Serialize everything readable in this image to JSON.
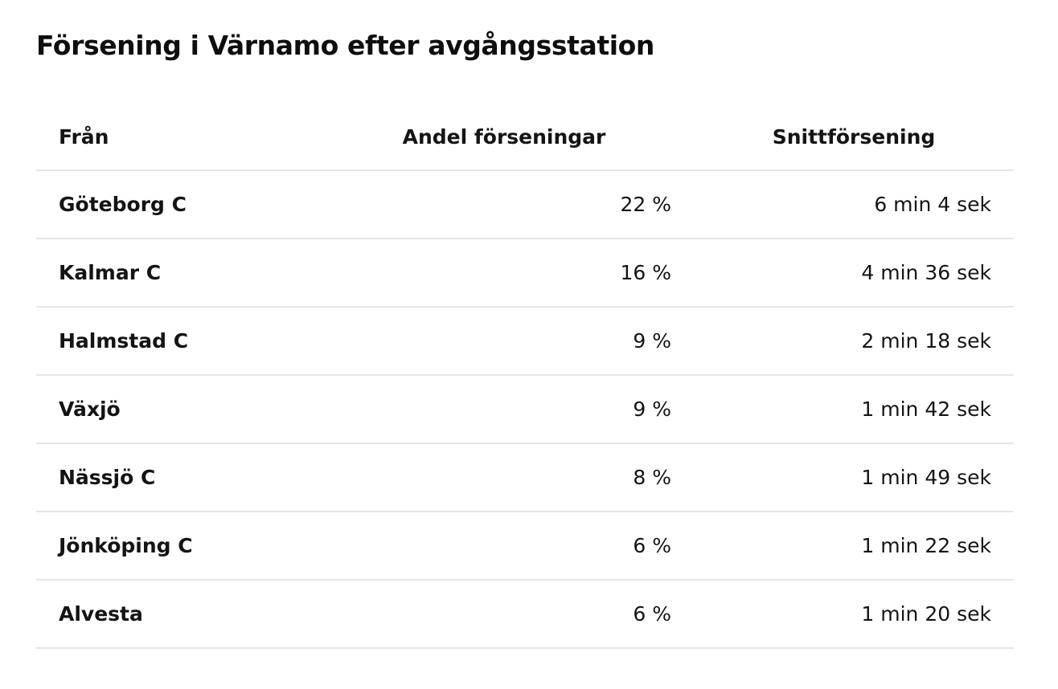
{
  "chart_data": {
    "type": "table",
    "title": "Försening i Värnamo efter avgångsstation",
    "columns": [
      "Från",
      "Andel förseningar",
      "Snittförsening"
    ],
    "rows": [
      [
        "Göteborg C",
        "22 %",
        "6 min 4 sek"
      ],
      [
        "Kalmar C",
        "16 %",
        "4 min 36 sek"
      ],
      [
        "Halmstad C",
        "9 %",
        "2 min 18 sek"
      ],
      [
        "Växjö",
        "9 %",
        "1 min 42 sek"
      ],
      [
        "Nässjö C",
        "8 %",
        "1 min 49 sek"
      ],
      [
        "Jönköping C",
        "6 %",
        "1 min 22 sek"
      ],
      [
        "Alvesta",
        "6 %",
        "1 min 20 sek"
      ]
    ],
    "share_percent": [
      22,
      16,
      9,
      9,
      8,
      6,
      6
    ],
    "avg_delay_seconds": [
      364,
      276,
      138,
      102,
      109,
      82,
      80
    ],
    "layout": {
      "header_align": [
        "left",
        "center",
        "center"
      ],
      "data_align": [
        "left",
        "right",
        "right"
      ],
      "grid": "horizontal-dividers-only",
      "legend": "none"
    },
    "colors": {
      "text": "#141414",
      "title": "#0e0e0e",
      "divider": "#e6e6e6",
      "background": "#ffffff"
    }
  }
}
